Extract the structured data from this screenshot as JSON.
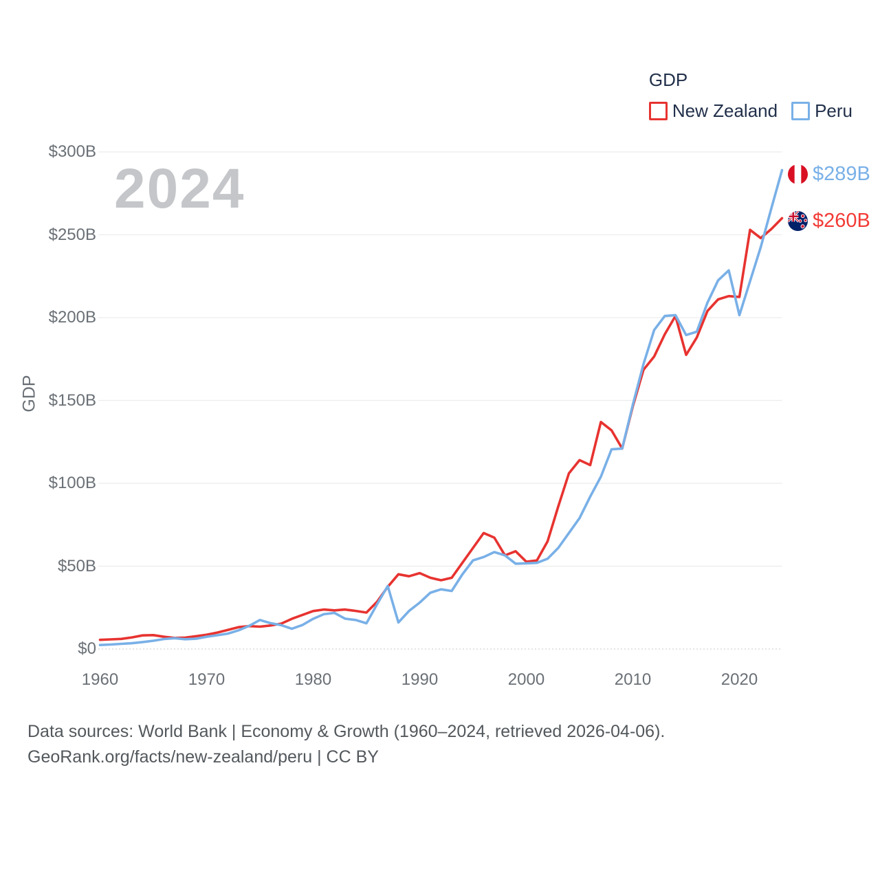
{
  "watermark": "2024",
  "legend": {
    "title": "GDP",
    "items": [
      {
        "label": "New Zealand"
      },
      {
        "label": "Peru"
      }
    ]
  },
  "axis": {
    "y_title": "GDP",
    "y_ticks": [
      {
        "value": 0,
        "label": "$0"
      },
      {
        "value": 50,
        "label": "$50B"
      },
      {
        "value": 100,
        "label": "$100B"
      },
      {
        "value": 150,
        "label": "$150B"
      },
      {
        "value": 200,
        "label": "$200B"
      },
      {
        "value": 250,
        "label": "$250B"
      },
      {
        "value": 300,
        "label": "$300B"
      }
    ],
    "x_ticks": [
      {
        "value": 1960,
        "label": "1960"
      },
      {
        "value": 1970,
        "label": "1970"
      },
      {
        "value": 1980,
        "label": "1980"
      },
      {
        "value": 1990,
        "label": "1990"
      },
      {
        "value": 2000,
        "label": "2000"
      },
      {
        "value": 2010,
        "label": "2010"
      },
      {
        "value": 2020,
        "label": "2020"
      }
    ]
  },
  "footer": {
    "line1": "Data sources: World Bank | Economy & Growth (1960–2024, retrieved 2026-04-06).",
    "line2": "GeoRank.org/facts/new-zealand/peru | CC BY"
  },
  "chart_data": {
    "type": "line",
    "title": "GDP",
    "ylabel": "GDP",
    "xlim": [
      1960,
      2024
    ],
    "ylim": [
      0,
      300
    ],
    "grid": "horizontal",
    "legend_position": "top-right",
    "x": [
      1960,
      1961,
      1962,
      1963,
      1964,
      1965,
      1966,
      1967,
      1968,
      1969,
      1970,
      1971,
      1972,
      1973,
      1974,
      1975,
      1976,
      1977,
      1978,
      1979,
      1980,
      1981,
      1982,
      1983,
      1984,
      1985,
      1986,
      1987,
      1988,
      1989,
      1990,
      1991,
      1992,
      1993,
      1994,
      1995,
      1996,
      1997,
      1998,
      1999,
      2000,
      2001,
      2002,
      2003,
      2004,
      2005,
      2006,
      2007,
      2008,
      2009,
      2010,
      2011,
      2012,
      2013,
      2014,
      2015,
      2016,
      2017,
      2018,
      2019,
      2020,
      2021,
      2022,
      2023,
      2024
    ],
    "series": [
      {
        "name": "New Zealand",
        "color": "#e73330",
        "values": [
          5.5,
          5.8,
          6.1,
          7.0,
          8.2,
          8.4,
          7.4,
          6.7,
          6.9,
          7.7,
          8.6,
          9.9,
          11.5,
          13.2,
          13.8,
          13.5,
          14.2,
          15.3,
          18.2,
          20.6,
          22.9,
          23.8,
          23.3,
          23.8,
          23.0,
          22.0,
          28.5,
          37.5,
          45.1,
          43.9,
          45.8,
          43.0,
          41.5,
          43.0,
          52.0,
          61.0,
          70.0,
          67.2,
          56.5,
          59.0,
          52.7,
          53.5,
          65.0,
          86.0,
          106.0,
          114.0,
          111.0,
          137.0,
          132.0,
          121.0,
          146.5,
          168.5,
          176.5,
          190.0,
          201.0,
          177.5,
          188.0,
          204.0,
          211.0,
          213.0,
          212.5,
          253.0,
          248.0,
          253.5,
          260.0
        ]
      },
      {
        "name": "Peru",
        "color": "#79b0e7",
        "values": [
          2.4,
          2.7,
          3.1,
          3.5,
          4.2,
          5.0,
          6.0,
          6.5,
          5.9,
          6.2,
          7.4,
          8.3,
          9.3,
          11.3,
          14.0,
          17.5,
          15.6,
          14.4,
          12.2,
          14.5,
          18.2,
          21.0,
          21.8,
          18.3,
          17.5,
          15.5,
          27.0,
          38.0,
          16.0,
          23.0,
          28.0,
          34.0,
          36.0,
          35.0,
          45.0,
          53.5,
          55.5,
          58.5,
          56.5,
          51.5,
          51.7,
          52.0,
          54.5,
          61.0,
          70.0,
          79.0,
          92.0,
          104.0,
          120.5,
          121.0,
          147.5,
          172.0,
          192.5,
          201.0,
          201.5,
          189.5,
          191.5,
          209.0,
          222.5,
          228.5,
          201.5,
          222.0,
          242.5,
          266.0,
          289.0
        ]
      }
    ],
    "end_labels": [
      {
        "series": "Peru",
        "text": "$289B",
        "value": 289,
        "color": "#79b0e7",
        "flag": "peru"
      },
      {
        "series": "New Zealand",
        "text": "$260B",
        "value": 260,
        "color": "#f23b36",
        "flag": "new-zealand"
      }
    ]
  }
}
